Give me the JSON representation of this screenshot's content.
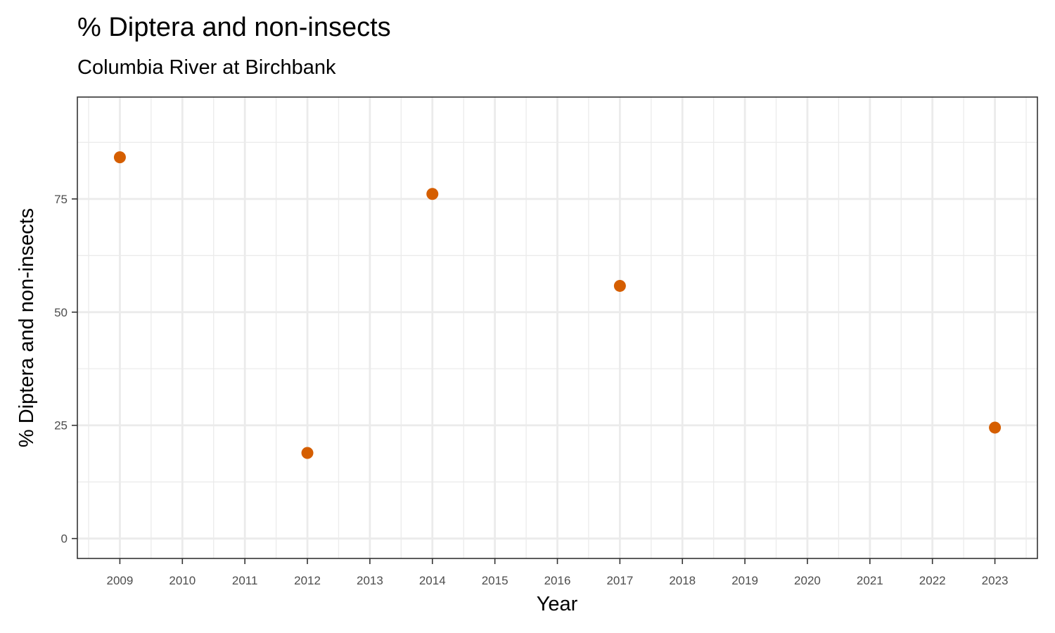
{
  "chart_data": {
    "type": "scatter",
    "title": "% Diptera and non-insects",
    "subtitle": "Columbia River at Birchbank",
    "xlabel": "Year",
    "ylabel": "% Diptera and non-insects",
    "x_ticks": [
      "2009",
      "2010",
      "2011",
      "2012",
      "2013",
      "2014",
      "2015",
      "2016",
      "2017",
      "2018",
      "2019",
      "2020",
      "2021",
      "2022",
      "2023"
    ],
    "y_ticks": [
      "0",
      "25",
      "50",
      "75"
    ],
    "xlim": [
      2008.32,
      2023.68
    ],
    "ylim": [
      -4.4,
      97.5
    ],
    "grid": true,
    "point_color": "#D55E00",
    "points": [
      {
        "x": 2009,
        "y": 84.2
      },
      {
        "x": 2012,
        "y": 18.9
      },
      {
        "x": 2014,
        "y": 76.1
      },
      {
        "x": 2017,
        "y": 55.8
      },
      {
        "x": 2023,
        "y": 24.5
      }
    ]
  }
}
